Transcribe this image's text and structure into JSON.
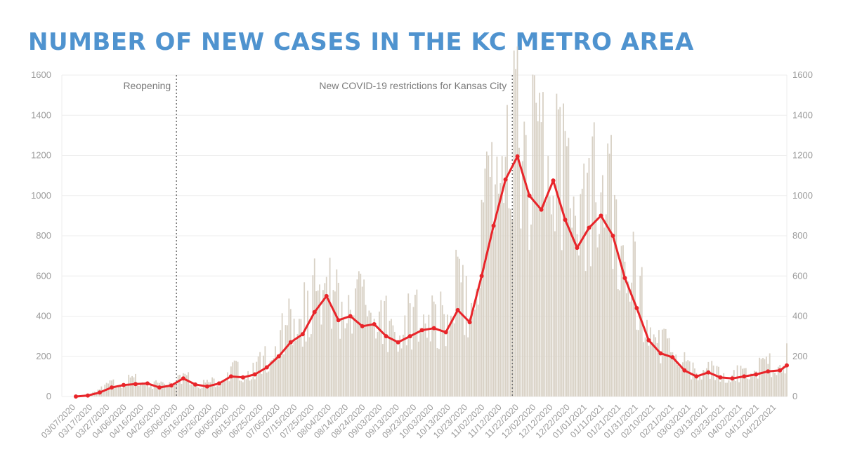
{
  "title": "NUMBER OF NEW CASES IN THE KC METRO AREA",
  "colors": {
    "title": "#4f93cf",
    "bars": "#d8d1c5",
    "line": "#e8252a",
    "grid": "#eeeeee",
    "text": "#9b9b9b",
    "annotation": "#6f6f6f"
  },
  "chart_data": {
    "type": "bar",
    "overlay": "line",
    "x_start": "03/07/2020",
    "x_end": "04/28/2021",
    "ylim": [
      0,
      1600
    ],
    "yticks": [
      0,
      200,
      400,
      600,
      800,
      1000,
      1200,
      1400,
      1600
    ],
    "y_axis_sides": [
      "left",
      "right"
    ],
    "grid": true,
    "x_tick_labels": [
      "03/07/2020",
      "03/17/2020",
      "03/27/2020",
      "04/06/2020",
      "04/16/2020",
      "04/26/2020",
      "05/06/2020",
      "05/16/2020",
      "05/26/2020",
      "06/05/2020",
      "06/15/2020",
      "06/25/2020",
      "07/05/2020",
      "07/15/2020",
      "07/25/2020",
      "08/04/2020",
      "08/14/2020",
      "08/24/2020",
      "09/03/2020",
      "09/13/2020",
      "09/23/2020",
      "10/03/2020",
      "10/13/2020",
      "10/23/2020",
      "11/02/2020",
      "11/12/2020",
      "11/22/2020",
      "12/02/2020",
      "12/12/2020",
      "12/22/2020",
      "01/01/2021",
      "01/11/2021",
      "01/21/2021",
      "01/31/2021",
      "02/10/2021",
      "02/21/2021",
      "03/03/2021",
      "03/13/2021",
      "03/23/2021",
      "04/02/2021",
      "04/12/2021",
      "04/22/2021"
    ],
    "annotations": [
      {
        "date": "05/05/2020",
        "label": "Reopening"
      },
      {
        "date": "11/18/2020",
        "label": "New COVID-19 restrictions for Kansas City"
      }
    ],
    "daily_bars": [
      {
        "date": "03/07/2020",
        "value": 2
      },
      {
        "date": "03/14/2020",
        "value": 8
      },
      {
        "date": "03/21/2020",
        "value": 30
      },
      {
        "date": "03/28/2020",
        "value": 50
      },
      {
        "date": "04/04/2020",
        "value": 60
      },
      {
        "date": "04/11/2020",
        "value": 70
      },
      {
        "date": "04/18/2020",
        "value": 55
      },
      {
        "date": "04/25/2020",
        "value": 50
      },
      {
        "date": "05/02/2020",
        "value": 60
      },
      {
        "date": "05/09/2020",
        "value": 90
      },
      {
        "date": "05/16/2020",
        "value": 55
      },
      {
        "date": "05/23/2020",
        "value": 50
      },
      {
        "date": "05/30/2020",
        "value": 65
      },
      {
        "date": "06/06/2020",
        "value": 110
      },
      {
        "date": "06/13/2020",
        "value": 95
      },
      {
        "date": "06/20/2020",
        "value": 110
      },
      {
        "date": "06/27/2020",
        "value": 160
      },
      {
        "date": "07/04/2020",
        "value": 220
      },
      {
        "date": "07/11/2020",
        "value": 300
      },
      {
        "date": "07/18/2020",
        "value": 340
      },
      {
        "date": "07/25/2020",
        "value": 450
      },
      {
        "date": "08/01/2020",
        "value": 480
      },
      {
        "date": "08/08/2020",
        "value": 360
      },
      {
        "date": "08/15/2020",
        "value": 420
      },
      {
        "date": "08/22/2020",
        "value": 350
      },
      {
        "date": "08/29/2020",
        "value": 360
      },
      {
        "date": "09/05/2020",
        "value": 300
      },
      {
        "date": "09/12/2020",
        "value": 280
      },
      {
        "date": "09/19/2020",
        "value": 320
      },
      {
        "date": "09/26/2020",
        "value": 340
      },
      {
        "date": "10/03/2020",
        "value": 330
      },
      {
        "date": "10/10/2020",
        "value": 320
      },
      {
        "date": "10/17/2020",
        "value": 450
      },
      {
        "date": "10/24/2020",
        "value": 380
      },
      {
        "date": "10/31/2020",
        "value": 600
      },
      {
        "date": "11/07/2020",
        "value": 900
      },
      {
        "date": "11/14/2020",
        "value": 1100
      },
      {
        "date": "11/21/2020",
        "value": 1190
      },
      {
        "date": "11/28/2020",
        "value": 1000
      },
      {
        "date": "12/05/2020",
        "value": 950
      },
      {
        "date": "12/12/2020",
        "value": 1070
      },
      {
        "date": "12/19/2020",
        "value": 900
      },
      {
        "date": "12/26/2020",
        "value": 780
      },
      {
        "date": "01/02/2021",
        "value": 820
      },
      {
        "date": "01/09/2021",
        "value": 900
      },
      {
        "date": "01/16/2021",
        "value": 780
      },
      {
        "date": "01/23/2021",
        "value": 580
      },
      {
        "date": "01/30/2021",
        "value": 450
      },
      {
        "date": "02/06/2021",
        "value": 280
      },
      {
        "date": "02/13/2021",
        "value": 220
      },
      {
        "date": "02/20/2021",
        "value": 200
      },
      {
        "date": "02/27/2021",
        "value": 130
      },
      {
        "date": "03/06/2021",
        "value": 100
      },
      {
        "date": "03/13/2021",
        "value": 115
      },
      {
        "date": "03/20/2021",
        "value": 95
      },
      {
        "date": "03/27/2021",
        "value": 90
      },
      {
        "date": "04/03/2021",
        "value": 100
      },
      {
        "date": "04/10/2021",
        "value": 110
      },
      {
        "date": "04/17/2021",
        "value": 125
      },
      {
        "date": "04/24/2021",
        "value": 130
      },
      {
        "date": "04/28/2021",
        "value": 155
      }
    ],
    "rolling_average": [
      {
        "date": "03/07/2020",
        "value": 0
      },
      {
        "date": "03/14/2020",
        "value": 5
      },
      {
        "date": "03/21/2020",
        "value": 20
      },
      {
        "date": "03/28/2020",
        "value": 45
      },
      {
        "date": "04/04/2020",
        "value": 57
      },
      {
        "date": "04/11/2020",
        "value": 62
      },
      {
        "date": "04/18/2020",
        "value": 65
      },
      {
        "date": "04/25/2020",
        "value": 45
      },
      {
        "date": "05/02/2020",
        "value": 55
      },
      {
        "date": "05/09/2020",
        "value": 90
      },
      {
        "date": "05/16/2020",
        "value": 60
      },
      {
        "date": "05/23/2020",
        "value": 50
      },
      {
        "date": "05/30/2020",
        "value": 65
      },
      {
        "date": "06/06/2020",
        "value": 100
      },
      {
        "date": "06/13/2020",
        "value": 95
      },
      {
        "date": "06/20/2020",
        "value": 110
      },
      {
        "date": "06/27/2020",
        "value": 145
      },
      {
        "date": "07/04/2020",
        "value": 200
      },
      {
        "date": "07/11/2020",
        "value": 270
      },
      {
        "date": "07/18/2020",
        "value": 310
      },
      {
        "date": "07/25/2020",
        "value": 420
      },
      {
        "date": "08/01/2020",
        "value": 500
      },
      {
        "date": "08/08/2020",
        "value": 380
      },
      {
        "date": "08/15/2020",
        "value": 400
      },
      {
        "date": "08/22/2020",
        "value": 350
      },
      {
        "date": "08/29/2020",
        "value": 360
      },
      {
        "date": "09/05/2020",
        "value": 300
      },
      {
        "date": "09/12/2020",
        "value": 270
      },
      {
        "date": "09/19/2020",
        "value": 300
      },
      {
        "date": "09/26/2020",
        "value": 330
      },
      {
        "date": "10/03/2020",
        "value": 340
      },
      {
        "date": "10/10/2020",
        "value": 320
      },
      {
        "date": "10/17/2020",
        "value": 430
      },
      {
        "date": "10/24/2020",
        "value": 370
      },
      {
        "date": "10/31/2020",
        "value": 600
      },
      {
        "date": "11/07/2020",
        "value": 850
      },
      {
        "date": "11/14/2020",
        "value": 1080
      },
      {
        "date": "11/21/2020",
        "value": 1195
      },
      {
        "date": "11/28/2020",
        "value": 1000
      },
      {
        "date": "12/05/2020",
        "value": 930
      },
      {
        "date": "12/12/2020",
        "value": 1075
      },
      {
        "date": "12/19/2020",
        "value": 880
      },
      {
        "date": "12/26/2020",
        "value": 740
      },
      {
        "date": "01/02/2021",
        "value": 840
      },
      {
        "date": "01/09/2021",
        "value": 900
      },
      {
        "date": "01/16/2021",
        "value": 800
      },
      {
        "date": "01/23/2021",
        "value": 590
      },
      {
        "date": "01/30/2021",
        "value": 440
      },
      {
        "date": "02/06/2021",
        "value": 280
      },
      {
        "date": "02/13/2021",
        "value": 215
      },
      {
        "date": "02/20/2021",
        "value": 195
      },
      {
        "date": "02/27/2021",
        "value": 130
      },
      {
        "date": "03/06/2021",
        "value": 100
      },
      {
        "date": "03/13/2021",
        "value": 120
      },
      {
        "date": "03/20/2021",
        "value": 95
      },
      {
        "date": "03/27/2021",
        "value": 90
      },
      {
        "date": "04/03/2021",
        "value": 100
      },
      {
        "date": "04/10/2021",
        "value": 110
      },
      {
        "date": "04/17/2021",
        "value": 125
      },
      {
        "date": "04/24/2021",
        "value": 130
      },
      {
        "date": "04/28/2021",
        "value": 155
      }
    ]
  }
}
